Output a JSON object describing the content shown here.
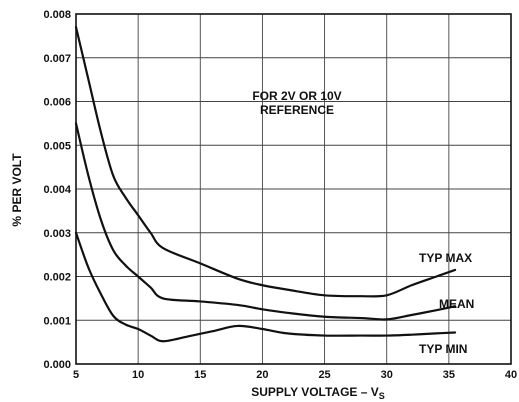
{
  "chart_data": {
    "type": "line",
    "title": "",
    "xlabel": "SUPPLY VOLTAGE – V",
    "xlabel_subscript": "S",
    "ylabel": "% PER VOLT",
    "xlim": [
      5,
      40
    ],
    "ylim": [
      0.0,
      0.008
    ],
    "x_ticks": [
      5,
      10,
      15,
      20,
      25,
      30,
      35,
      40
    ],
    "x_tick_labels": [
      "5",
      "10",
      "15",
      "20",
      "25",
      "30",
      "35",
      "40"
    ],
    "y_ticks": [
      0.0,
      0.001,
      0.002,
      0.003,
      0.004,
      0.005,
      0.006,
      0.007,
      0.008
    ],
    "y_tick_labels": [
      "0.000",
      "0.001",
      "0.002",
      "0.003",
      "0.004",
      "0.005",
      "0.006",
      "0.007",
      "0.008"
    ],
    "grid": true,
    "annotation": [
      "FOR 2V OR 10V",
      "REFERENCE"
    ],
    "series": [
      {
        "name": "TYP MAX",
        "x": [
          5,
          6,
          7,
          8,
          9,
          10,
          11,
          12,
          15,
          18,
          20,
          22,
          25,
          28,
          30,
          32,
          34,
          35.5
        ],
        "y": [
          0.0077,
          0.0065,
          0.0053,
          0.0043,
          0.0038,
          0.0034,
          0.003,
          0.00265,
          0.0023,
          0.00195,
          0.0018,
          0.0017,
          0.00157,
          0.00155,
          0.00157,
          0.0018,
          0.002,
          0.00215
        ]
      },
      {
        "name": "MEAN",
        "x": [
          5,
          6,
          7,
          8,
          9,
          10,
          11,
          12,
          15,
          18,
          20,
          22,
          25,
          28,
          30,
          32,
          34,
          35.5
        ],
        "y": [
          0.0055,
          0.0043,
          0.0033,
          0.0026,
          0.00225,
          0.002,
          0.00175,
          0.0015,
          0.00143,
          0.00135,
          0.00125,
          0.00117,
          0.00108,
          0.00105,
          0.00102,
          0.00112,
          0.00123,
          0.00132
        ]
      },
      {
        "name": "TYP MIN",
        "x": [
          5,
          6,
          7,
          8,
          9,
          10,
          11,
          12,
          14,
          16,
          18,
          20,
          22,
          25,
          28,
          30,
          32,
          34,
          35.5
        ],
        "y": [
          0.003,
          0.0022,
          0.0016,
          0.0011,
          0.0009,
          0.0008,
          0.00065,
          0.00052,
          0.00063,
          0.00075,
          0.00087,
          0.0008,
          0.0007,
          0.00065,
          0.00065,
          0.00065,
          0.00067,
          0.0007,
          0.00072
        ]
      }
    ]
  }
}
